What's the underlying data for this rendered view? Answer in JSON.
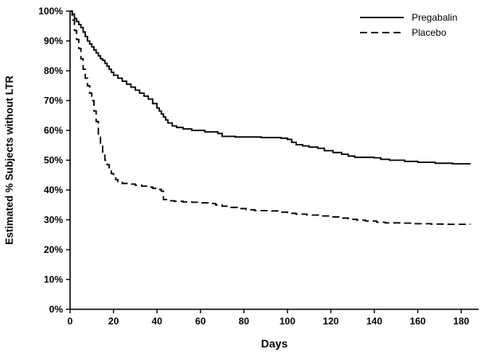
{
  "chart_data": {
    "type": "line",
    "subtype": "kaplan-meier-step",
    "title": "",
    "xlabel": "Days",
    "ylabel": "Estimated % Subjects without LTR",
    "xlim": [
      0,
      188
    ],
    "ylim": [
      0,
      100
    ],
    "x_ticks": [
      0,
      20,
      40,
      60,
      80,
      100,
      120,
      140,
      160,
      180
    ],
    "y_ticks": [
      0,
      10,
      20,
      30,
      40,
      50,
      60,
      70,
      80,
      90,
      100
    ],
    "y_tick_labels": [
      "0%",
      "10%",
      "20%",
      "30%",
      "40%",
      "50%",
      "60%",
      "70%",
      "80%",
      "90%",
      "100%"
    ],
    "grid": false,
    "legend_position": "top-right",
    "line_color": "#000000",
    "series": [
      {
        "name": "Pregabalin",
        "line_style": "solid",
        "color": "#000000",
        "points": [
          [
            0,
            100
          ],
          [
            1,
            99
          ],
          [
            2,
            97.5
          ],
          [
            3,
            96.5
          ],
          [
            4,
            95.5
          ],
          [
            5,
            94.5
          ],
          [
            6,
            93
          ],
          [
            7,
            91.5
          ],
          [
            8,
            90
          ],
          [
            9,
            89
          ],
          [
            10,
            88
          ],
          [
            11,
            87
          ],
          [
            12,
            86
          ],
          [
            13,
            85
          ],
          [
            14,
            84
          ],
          [
            15,
            83.5
          ],
          [
            16,
            82.5
          ],
          [
            17,
            81.5
          ],
          [
            18,
            80.5
          ],
          [
            19,
            79.5
          ],
          [
            20,
            78.5
          ],
          [
            22,
            77.5
          ],
          [
            24,
            76.5
          ],
          [
            26,
            75.5
          ],
          [
            28,
            74.5
          ],
          [
            30,
            73.5
          ],
          [
            32,
            72.5
          ],
          [
            34,
            71.5
          ],
          [
            36,
            70.5
          ],
          [
            38,
            69
          ],
          [
            40,
            67.5
          ],
          [
            41,
            66.5
          ],
          [
            42,
            65.5
          ],
          [
            43,
            64.5
          ],
          [
            44,
            63.5
          ],
          [
            45,
            62.5
          ],
          [
            47,
            61.5
          ],
          [
            49,
            61
          ],
          [
            52,
            60.5
          ],
          [
            56,
            60
          ],
          [
            62,
            59.5
          ],
          [
            68,
            59
          ],
          [
            70,
            58
          ],
          [
            76,
            57.8
          ],
          [
            88,
            57.6
          ],
          [
            97,
            57.4
          ],
          [
            100,
            57
          ],
          [
            102,
            56
          ],
          [
            104,
            55.2
          ],
          [
            107,
            54.8
          ],
          [
            110,
            54.4
          ],
          [
            114,
            54
          ],
          [
            117,
            53.2
          ],
          [
            121,
            52.6
          ],
          [
            125,
            52
          ],
          [
            128,
            51.4
          ],
          [
            131,
            51
          ],
          [
            140,
            50.8
          ],
          [
            143,
            50.3
          ],
          [
            147,
            50
          ],
          [
            154,
            49.6
          ],
          [
            160,
            49.3
          ],
          [
            168,
            49
          ],
          [
            176,
            48.8
          ],
          [
            184,
            48.6
          ]
        ]
      },
      {
        "name": "Placebo",
        "line_style": "dashed",
        "color": "#000000",
        "points": [
          [
            0,
            100
          ],
          [
            1,
            97
          ],
          [
            2,
            93.5
          ],
          [
            3,
            90.5
          ],
          [
            4,
            87.5
          ],
          [
            5,
            84
          ],
          [
            6,
            80.5
          ],
          [
            7,
            77.5
          ],
          [
            8,
            75
          ],
          [
            9,
            72.5
          ],
          [
            10,
            70
          ],
          [
            11,
            66.5
          ],
          [
            12,
            63
          ],
          [
            13,
            58.5
          ],
          [
            14,
            55.5
          ],
          [
            15,
            52.5
          ],
          [
            16,
            50
          ],
          [
            17,
            48.5
          ],
          [
            18,
            47
          ],
          [
            19,
            45.5
          ],
          [
            20,
            44.5
          ],
          [
            21,
            43.5
          ],
          [
            22,
            42.8
          ],
          [
            24,
            42.2
          ],
          [
            27,
            42
          ],
          [
            30,
            41.6
          ],
          [
            33,
            41.3
          ],
          [
            36,
            41
          ],
          [
            38,
            40.6
          ],
          [
            40,
            40.2
          ],
          [
            42,
            39.6
          ],
          [
            43,
            36.8
          ],
          [
            45,
            36.4
          ],
          [
            48,
            36.2
          ],
          [
            52,
            36
          ],
          [
            56,
            35.9
          ],
          [
            60,
            35.7
          ],
          [
            64,
            35.5
          ],
          [
            67,
            35
          ],
          [
            70,
            34.6
          ],
          [
            73,
            34.2
          ],
          [
            77,
            33.8
          ],
          [
            81,
            33.4
          ],
          [
            85,
            33.1
          ],
          [
            92,
            33
          ],
          [
            96,
            32.6
          ],
          [
            100,
            32.2
          ],
          [
            104,
            31.9
          ],
          [
            109,
            31.6
          ],
          [
            115,
            31.3
          ],
          [
            120,
            31
          ],
          [
            124,
            30.6
          ],
          [
            128,
            30.2
          ],
          [
            132,
            29.9
          ],
          [
            136,
            29.6
          ],
          [
            141,
            29.2
          ],
          [
            145,
            29
          ],
          [
            152,
            28.9
          ],
          [
            158,
            28.7
          ],
          [
            166,
            28.6
          ],
          [
            174,
            28.5
          ],
          [
            184,
            28.4
          ]
        ]
      }
    ]
  }
}
